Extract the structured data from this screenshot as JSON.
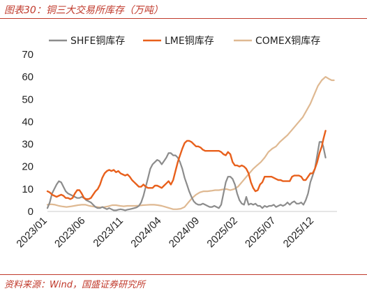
{
  "title": "图表30：铜三大交易所库存（万吨）",
  "source": "资料来源：Wind，国盛证券研究所",
  "colors": {
    "shfe": "#8c8c8c",
    "lme": "#e8601c",
    "comex": "#dfb992",
    "accent": "#c0392b"
  },
  "chart_data": {
    "type": "line",
    "title": "",
    "xlabel": "",
    "ylabel": "",
    "ylim": [
      0,
      70
    ],
    "yticks": [
      0,
      10,
      20,
      30,
      40,
      50,
      60,
      70
    ],
    "xrange": [
      "2023-01",
      "2026-03"
    ],
    "xtick_labels": [
      "2023/01",
      "2023/06",
      "2023/11",
      "2024/04",
      "2024/09",
      "2025/02",
      "2025/07",
      "2025/12"
    ],
    "xtick_months": [
      0,
      5,
      10,
      15,
      20,
      25,
      30,
      35
    ],
    "legend_position": "top",
    "grid": false,
    "series": [
      {
        "name": "SHFE铜库存",
        "key": "shfe",
        "points": [
          [
            0.0,
            1.5
          ],
          [
            0.3,
            4
          ],
          [
            0.6,
            8
          ],
          [
            0.9,
            10
          ],
          [
            1.2,
            12
          ],
          [
            1.5,
            13.5
          ],
          [
            1.8,
            13
          ],
          [
            2.1,
            11
          ],
          [
            2.4,
            9
          ],
          [
            2.7,
            8
          ],
          [
            3.0,
            7.5
          ],
          [
            3.3,
            7
          ],
          [
            3.6,
            6.5
          ],
          [
            3.9,
            6
          ],
          [
            4.2,
            6
          ],
          [
            4.5,
            6.5
          ],
          [
            4.8,
            6
          ],
          [
            5.1,
            5
          ],
          [
            5.4,
            4.5
          ],
          [
            5.7,
            4
          ],
          [
            6.0,
            3
          ],
          [
            6.3,
            2
          ],
          [
            6.6,
            1.5
          ],
          [
            6.9,
            1.5
          ],
          [
            7.2,
            2
          ],
          [
            7.5,
            1.5
          ],
          [
            7.8,
            1
          ],
          [
            8.1,
            1.5
          ],
          [
            8.4,
            1
          ],
          [
            8.7,
            0.5
          ],
          [
            9.0,
            0.5
          ],
          [
            9.3,
            0.8
          ],
          [
            9.6,
            1
          ],
          [
            9.9,
            0.8
          ],
          [
            10.2,
            0.5
          ],
          [
            10.5,
            0.8
          ],
          [
            10.8,
            1
          ],
          [
            11.1,
            1.2
          ],
          [
            11.4,
            1.5
          ],
          [
            11.7,
            1.8
          ],
          [
            12.0,
            2.5
          ],
          [
            12.3,
            4
          ],
          [
            12.6,
            7
          ],
          [
            12.9,
            11
          ],
          [
            13.2,
            15
          ],
          [
            13.5,
            19
          ],
          [
            13.8,
            21
          ],
          [
            14.1,
            22
          ],
          [
            14.4,
            23
          ],
          [
            14.7,
            22.5
          ],
          [
            15.0,
            21
          ],
          [
            15.3,
            22.5
          ],
          [
            15.6,
            24
          ],
          [
            15.9,
            26
          ],
          [
            16.2,
            26
          ],
          [
            16.5,
            25
          ],
          [
            16.8,
            25
          ],
          [
            17.1,
            24
          ],
          [
            17.4,
            22
          ],
          [
            17.7,
            19
          ],
          [
            18.0,
            15
          ],
          [
            18.3,
            12
          ],
          [
            18.6,
            9
          ],
          [
            18.9,
            6.5
          ],
          [
            19.2,
            4.5
          ],
          [
            19.5,
            3.5
          ],
          [
            19.8,
            3
          ],
          [
            20.1,
            3
          ],
          [
            20.4,
            3.5
          ],
          [
            20.7,
            3
          ],
          [
            21.0,
            2.5
          ],
          [
            21.3,
            2
          ],
          [
            21.6,
            2
          ],
          [
            21.9,
            2.5
          ],
          [
            22.2,
            2
          ],
          [
            22.5,
            1.5
          ],
          [
            22.8,
            3
          ],
          [
            23.1,
            8
          ],
          [
            23.4,
            13
          ],
          [
            23.7,
            15.5
          ],
          [
            24.0,
            15.5
          ],
          [
            24.3,
            14.5
          ],
          [
            24.6,
            12
          ],
          [
            24.9,
            8
          ],
          [
            25.2,
            5
          ],
          [
            25.5,
            3.5
          ],
          [
            25.8,
            3
          ],
          [
            26.1,
            6.5
          ],
          [
            26.4,
            3
          ],
          [
            26.7,
            3.5
          ],
          [
            27.0,
            3
          ],
          [
            27.3,
            3.5
          ],
          [
            27.6,
            2.5
          ],
          [
            27.9,
            2.5
          ],
          [
            28.2,
            1.5
          ],
          [
            28.5,
            2.5
          ],
          [
            28.8,
            2
          ],
          [
            29.1,
            2.5
          ],
          [
            29.4,
            2.5
          ],
          [
            29.7,
            3
          ],
          [
            30.0,
            2
          ],
          [
            30.3,
            2.5
          ],
          [
            30.6,
            3
          ],
          [
            30.9,
            2.5
          ],
          [
            31.2,
            3
          ],
          [
            31.5,
            4
          ],
          [
            31.8,
            3
          ],
          [
            32.1,
            4
          ],
          [
            32.4,
            4.5
          ],
          [
            32.7,
            3.5
          ],
          [
            33.0,
            3.5
          ],
          [
            33.3,
            4
          ],
          [
            33.6,
            3
          ],
          [
            33.9,
            5
          ],
          [
            34.2,
            8
          ],
          [
            34.5,
            13
          ],
          [
            34.8,
            16
          ],
          [
            35.1,
            19
          ],
          [
            35.4,
            25
          ],
          [
            35.7,
            31
          ],
          [
            36.0,
            31
          ],
          [
            36.2,
            29
          ],
          [
            36.5,
            24
          ]
        ]
      },
      {
        "name": "LME铜库存",
        "key": "lme",
        "points": [
          [
            0.0,
            9
          ],
          [
            0.3,
            8.5
          ],
          [
            0.6,
            7.5
          ],
          [
            0.9,
            7
          ],
          [
            1.2,
            6.5
          ],
          [
            1.5,
            7
          ],
          [
            1.8,
            7.5
          ],
          [
            2.1,
            7
          ],
          [
            2.4,
            6
          ],
          [
            2.7,
            6
          ],
          [
            3.0,
            5.5
          ],
          [
            3.3,
            6
          ],
          [
            3.6,
            8
          ],
          [
            3.9,
            9.5
          ],
          [
            4.2,
            9.5
          ],
          [
            4.5,
            8
          ],
          [
            4.8,
            6
          ],
          [
            5.1,
            5.5
          ],
          [
            5.4,
            5.5
          ],
          [
            5.7,
            6
          ],
          [
            6.0,
            7.5
          ],
          [
            6.3,
            9
          ],
          [
            6.6,
            10
          ],
          [
            6.9,
            12
          ],
          [
            7.2,
            15
          ],
          [
            7.5,
            17
          ],
          [
            7.8,
            18
          ],
          [
            8.1,
            18.5
          ],
          [
            8.4,
            18
          ],
          [
            8.7,
            18.5
          ],
          [
            9.0,
            17.5
          ],
          [
            9.3,
            18
          ],
          [
            9.6,
            17
          ],
          [
            9.9,
            16.5
          ],
          [
            10.2,
            16
          ],
          [
            10.5,
            16.5
          ],
          [
            10.8,
            15.5
          ],
          [
            11.1,
            14
          ],
          [
            11.4,
            13
          ],
          [
            11.7,
            12
          ],
          [
            12.0,
            11
          ],
          [
            12.3,
            11
          ],
          [
            12.6,
            12
          ],
          [
            12.9,
            11
          ],
          [
            13.2,
            10.5
          ],
          [
            13.5,
            10.5
          ],
          [
            13.8,
            10.5
          ],
          [
            14.1,
            11.5
          ],
          [
            14.4,
            11.5
          ],
          [
            14.7,
            11
          ],
          [
            15.0,
            10.5
          ],
          [
            15.3,
            11.5
          ],
          [
            15.6,
            12.5
          ],
          [
            15.9,
            13.5
          ],
          [
            16.2,
            12
          ],
          [
            16.5,
            14
          ],
          [
            16.8,
            18
          ],
          [
            17.1,
            22
          ],
          [
            17.4,
            25
          ],
          [
            17.7,
            28
          ],
          [
            18.0,
            30.5
          ],
          [
            18.3,
            31.5
          ],
          [
            18.6,
            31.5
          ],
          [
            18.9,
            31
          ],
          [
            19.2,
            30
          ],
          [
            19.5,
            29
          ],
          [
            19.8,
            29
          ],
          [
            20.1,
            28.5
          ],
          [
            20.4,
            27.5
          ],
          [
            20.7,
            27
          ],
          [
            21.0,
            27
          ],
          [
            21.3,
            27
          ],
          [
            21.6,
            27
          ],
          [
            21.9,
            27
          ],
          [
            22.2,
            27
          ],
          [
            22.5,
            27
          ],
          [
            22.8,
            26.5
          ],
          [
            23.1,
            25.5
          ],
          [
            23.4,
            25
          ],
          [
            23.7,
            26.5
          ],
          [
            24.0,
            25.5
          ],
          [
            24.3,
            22
          ],
          [
            24.6,
            20.5
          ],
          [
            24.9,
            20.5
          ],
          [
            25.2,
            20
          ],
          [
            25.5,
            20.5
          ],
          [
            25.8,
            20
          ],
          [
            26.1,
            19
          ],
          [
            26.4,
            17
          ],
          [
            26.7,
            13
          ],
          [
            27.0,
            10.5
          ],
          [
            27.3,
            9
          ],
          [
            27.6,
            9.5
          ],
          [
            27.9,
            12
          ],
          [
            28.2,
            13
          ],
          [
            28.5,
            15.5
          ],
          [
            28.8,
            15.5
          ],
          [
            29.1,
            15.5
          ],
          [
            29.4,
            15.5
          ],
          [
            29.7,
            15
          ],
          [
            30.0,
            14.5
          ],
          [
            30.3,
            14
          ],
          [
            30.6,
            14
          ],
          [
            30.9,
            13.5
          ],
          [
            31.2,
            13.5
          ],
          [
            31.5,
            13.5
          ],
          [
            31.8,
            13.5
          ],
          [
            32.1,
            15.5
          ],
          [
            32.4,
            16
          ],
          [
            32.7,
            16
          ],
          [
            33.0,
            16
          ],
          [
            33.3,
            15.5
          ],
          [
            33.6,
            14
          ],
          [
            33.9,
            14
          ],
          [
            34.2,
            15.5
          ],
          [
            34.5,
            17
          ],
          [
            34.8,
            17
          ],
          [
            35.1,
            19
          ],
          [
            35.4,
            22
          ],
          [
            35.7,
            26
          ],
          [
            36.0,
            29
          ],
          [
            36.2,
            32
          ],
          [
            36.5,
            36
          ]
        ]
      },
      {
        "name": "COMEX铜库存",
        "key": "comex",
        "points": [
          [
            0.0,
            3
          ],
          [
            0.5,
            3.2
          ],
          [
            1.0,
            3
          ],
          [
            1.5,
            2.5
          ],
          [
            2.0,
            2.2
          ],
          [
            2.5,
            2
          ],
          [
            3.0,
            2.2
          ],
          [
            3.5,
            2.5
          ],
          [
            4.0,
            2.8
          ],
          [
            4.5,
            3
          ],
          [
            5.0,
            3
          ],
          [
            5.5,
            2.5
          ],
          [
            6.0,
            2.2
          ],
          [
            6.5,
            2
          ],
          [
            7.0,
            1.8
          ],
          [
            7.5,
            2
          ],
          [
            8.0,
            2.3
          ],
          [
            8.5,
            2.8
          ],
          [
            9.0,
            2.8
          ],
          [
            9.5,
            2.5
          ],
          [
            10.0,
            2.3
          ],
          [
            10.5,
            2.5
          ],
          [
            11.0,
            2.5
          ],
          [
            11.5,
            2.5
          ],
          [
            12.0,
            2.6
          ],
          [
            12.5,
            2.8
          ],
          [
            13.0,
            2.9
          ],
          [
            13.5,
            3
          ],
          [
            14.0,
            3
          ],
          [
            14.5,
            2.8
          ],
          [
            15.0,
            2.5
          ],
          [
            15.5,
            2
          ],
          [
            16.0,
            1.5
          ],
          [
            16.5,
            1
          ],
          [
            17.0,
            1
          ],
          [
            17.5,
            1.2
          ],
          [
            18.0,
            2
          ],
          [
            18.5,
            4
          ],
          [
            19.0,
            6
          ],
          [
            19.5,
            7.5
          ],
          [
            20.0,
            8.5
          ],
          [
            20.5,
            9
          ],
          [
            21.0,
            9
          ],
          [
            21.5,
            9.2
          ],
          [
            22.0,
            9.5
          ],
          [
            22.5,
            9.5
          ],
          [
            23.0,
            9.8
          ],
          [
            23.5,
            10
          ],
          [
            24.0,
            9.5
          ],
          [
            24.5,
            10
          ],
          [
            25.0,
            11
          ],
          [
            25.5,
            13
          ],
          [
            26.0,
            15
          ],
          [
            26.5,
            17
          ],
          [
            27.0,
            19
          ],
          [
            27.5,
            20.5
          ],
          [
            28.0,
            22
          ],
          [
            28.5,
            24
          ],
          [
            29.0,
            26.5
          ],
          [
            29.5,
            28
          ],
          [
            30.0,
            29
          ],
          [
            30.5,
            31
          ],
          [
            31.0,
            32.5
          ],
          [
            31.5,
            34
          ],
          [
            32.0,
            36
          ],
          [
            32.5,
            38
          ],
          [
            33.0,
            40
          ],
          [
            33.5,
            42
          ],
          [
            34.0,
            45
          ],
          [
            34.5,
            48
          ],
          [
            35.0,
            52
          ],
          [
            35.5,
            56
          ],
          [
            36.0,
            58.5
          ],
          [
            36.5,
            60
          ],
          [
            37.0,
            59
          ],
          [
            37.3,
            58.5
          ],
          [
            37.6,
            58.5
          ]
        ]
      }
    ]
  }
}
